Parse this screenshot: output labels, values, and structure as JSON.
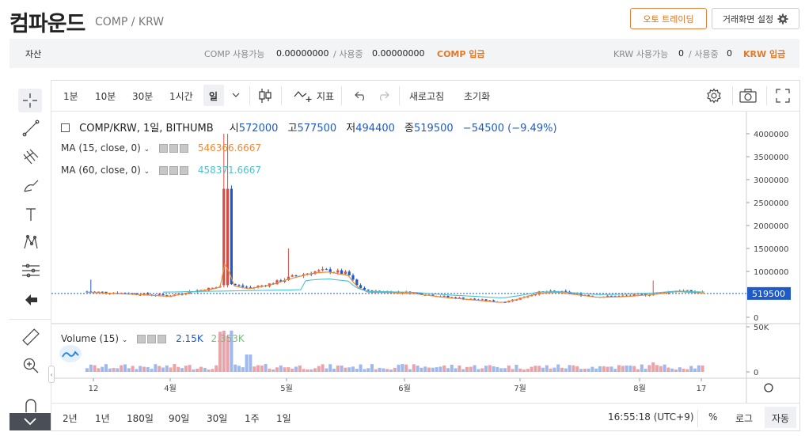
{
  "header": {
    "title_ko": "컴파운드",
    "title_en": "COMP / KRW",
    "auto_trading_label": "오토 트레이딩",
    "settings_label": "거래화면 설정"
  },
  "assets": {
    "label": "자산",
    "comp_available_label": "COMP 사용가능",
    "comp_available_value": "0.00000000",
    "comp_inuse_label": "/ 사용중",
    "comp_inuse_value": "0.00000000",
    "comp_deposit": "COMP 입금",
    "krw_available_label": "KRW 사용가능",
    "krw_available_value": "0",
    "krw_inuse_label": "/ 사용중",
    "krw_inuse_value": "0",
    "krw_deposit": "KRW 입금"
  },
  "toolbar": {
    "intervals": [
      "1분",
      "10분",
      "30분",
      "1시간",
      "일"
    ],
    "indicator_label": "지표",
    "refresh_label": "새로고침",
    "reset_label": "초기화"
  },
  "legend": {
    "symbol": "COMP/KRW, 1일, BITHUMB",
    "open_label": "시",
    "open": "572000",
    "high_label": "고",
    "high": "577500",
    "low_label": "저",
    "low": "494400",
    "close_label": "종",
    "close": "519500",
    "change": "−54500 (−9.49%)",
    "ma15_label": "MA (15, close, 0)",
    "ma15_value": "546366.6667",
    "ma60_label": "MA (60, close, 0)",
    "ma60_value": "458371.6667",
    "volume_label": "Volume (15)",
    "vol_a": "2.15K",
    "vol_b": "2.353K"
  },
  "price_axis": {
    "ticks": [
      "4000000",
      "3500000",
      "3000000",
      "2500000",
      "2000000",
      "1500000",
      "1000000",
      "0"
    ],
    "current": "519500",
    "vol_ticks": [
      "50K",
      "0"
    ]
  },
  "time_axis": {
    "ticks": [
      "12",
      "4월",
      "5월",
      "6월",
      "7월",
      "8월",
      "17"
    ]
  },
  "bottom": {
    "ranges": [
      "2년",
      "1년",
      "180일",
      "90일",
      "30일",
      "1주",
      "1일"
    ],
    "clock": "16:55:18 (UTC+9)",
    "percent": "%",
    "log": "로그",
    "auto": "자동"
  },
  "colors": {
    "up": "#d24f45",
    "down": "#1f5ac8",
    "ma15": "#f08a36",
    "ma60": "#49c3d0",
    "accent": "#e07a2a"
  }
}
